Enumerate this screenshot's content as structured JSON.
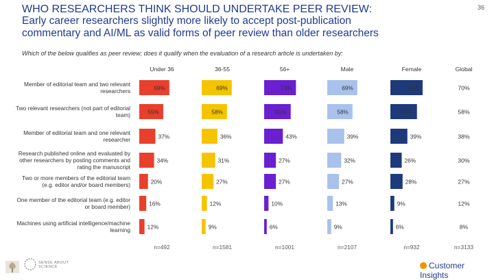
{
  "page_number": "36",
  "title_line1": "WHO RESEARCHERS THINK SHOULD UNDERTAKE PEER REVIEW:",
  "title_line2": "Early career researchers slightly more likely to accept post-publication",
  "title_line3": "commentary and AI/ML as valid forms of peer review than older researchers",
  "question": "Which of the below qualifies as peer review; does it qualify when the evaluation of a research article is undertaken by:",
  "footer": {
    "brand": "Customer Insights",
    "logo_text": "SENSE ABOUT SCIENCE"
  },
  "chart_data": {
    "type": "bar",
    "orientation": "horizontal",
    "unit": "%",
    "categories": [
      "Member of editorial team and two relevant researchers",
      "Two relevant researchers (not part of editorial team)",
      "Member of editorial team and one relevant researcher",
      "Research published online and evaluated by other researchers by posting comments and rating the manuscript",
      "Two or more members of the editorial team (e.g. editor and/or board members)",
      "One member of the editorial team (e.g. editor or board member)",
      "Machines using artificial intelligence/machine learning"
    ],
    "category_lines": [
      [
        "Member of editorial team and two relevant",
        "researchers"
      ],
      [
        "Two relevant researchers (not part of editorial",
        "team)"
      ],
      [
        "Member of editorial team and one relevant",
        "researcher"
      ],
      [
        "Research published online and evaluated by",
        "other researchers by posting comments and",
        "rating the manuscript"
      ],
      [
        "Two or more members of the editorial team",
        "(e.g. editor and/or board members)"
      ],
      [
        "One member of the editorial team (e.g. editor",
        "or board member)"
      ],
      [
        "Machines using artificial intelligence/machine",
        "learning"
      ]
    ],
    "series": [
      {
        "name": "Under 36",
        "color": "#e8402c",
        "values": [
          69,
          55,
          37,
          34,
          20,
          16,
          12
        ],
        "n": "n=492"
      },
      {
        "name": "36-55",
        "color": "#f5c400",
        "values": [
          69,
          58,
          36,
          31,
          27,
          12,
          9
        ],
        "n": "n=1581"
      },
      {
        "name": "56+",
        "color": "#6a1fd0",
        "values": [
          73,
          61,
          43,
          27,
          27,
          10,
          6
        ],
        "n": "n=1001"
      },
      {
        "name": "Male",
        "color": "#a9c2ec",
        "values": [
          69,
          58,
          39,
          32,
          27,
          13,
          9
        ],
        "n": "n=2107"
      },
      {
        "name": "Female",
        "color": "#1e3a7b",
        "values": [
          74,
          61,
          39,
          26,
          28,
          9,
          6
        ],
        "n": "n=932"
      }
    ],
    "global": {
      "name": "Global",
      "values": [
        "70%",
        "58%",
        "38%",
        "30%",
        "27%",
        "12%",
        "8%"
      ],
      "n": "n=3133"
    }
  }
}
